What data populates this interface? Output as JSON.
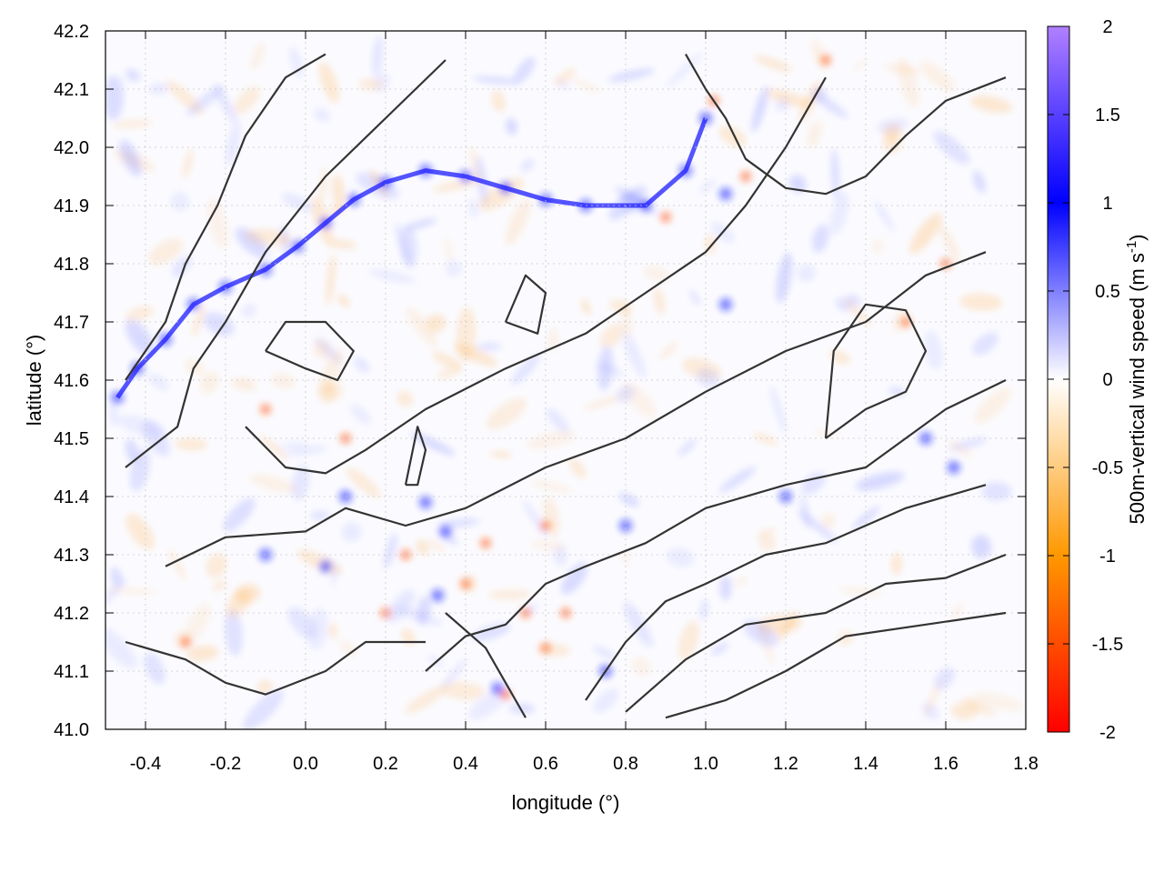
{
  "chart_data": {
    "type": "heatmap",
    "title": "",
    "xlabel": "longitude (°)",
    "ylabel": "latitude (°)",
    "xlim": [
      -0.5,
      1.8
    ],
    "ylim": [
      41.0,
      42.2
    ],
    "x_ticks": [
      -0.4,
      -0.2,
      0.0,
      0.2,
      0.4,
      0.6,
      0.8,
      1.0,
      1.2,
      1.4,
      1.6,
      1.8
    ],
    "x_tick_labels": [
      "-0.4",
      "-0.2",
      "0.0",
      "0.2",
      "0.4",
      "0.6",
      "0.8",
      "1.0",
      "1.2",
      "1.4",
      "1.6",
      "1.8"
    ],
    "y_ticks": [
      41.0,
      41.1,
      41.2,
      41.3,
      41.4,
      41.5,
      41.6,
      41.7,
      41.8,
      41.9,
      42.0,
      42.1,
      42.2
    ],
    "y_tick_labels": [
      "41.0",
      "41.1",
      "41.2",
      "41.3",
      "41.4",
      "41.5",
      "41.6",
      "41.7",
      "41.8",
      "41.9",
      "42.0",
      "42.1",
      "42.2"
    ],
    "grid": true,
    "colorbar": {
      "label": "500m-vertical wind speed",
      "unit_base": "(m s",
      "unit_exp": "-1",
      "unit_close": ")",
      "range": [
        -2,
        2
      ],
      "ticks": [
        2,
        1.5,
        1,
        0.5,
        0,
        -0.5,
        -1,
        -1.5,
        -2
      ],
      "tick_labels": [
        "2",
        "1.5",
        "1",
        "0.5",
        "0",
        "-0.5",
        "-1",
        "-1.5",
        "-2"
      ],
      "colors": [
        "#ff0000",
        "#ff9800",
        "#ffffff",
        "#0000ff",
        "#b080ff"
      ]
    },
    "colors": {
      "contour": "#333333",
      "frame": "#000000",
      "grid": "#c8c8c8"
    },
    "updrafts": [
      [
        -0.47,
        41.57
      ],
      [
        -0.42,
        41.62
      ],
      [
        -0.35,
        41.67
      ],
      [
        -0.28,
        41.73
      ],
      [
        -0.2,
        41.76
      ],
      [
        -0.1,
        41.79
      ],
      [
        -0.02,
        41.83
      ],
      [
        0.05,
        41.87
      ],
      [
        0.12,
        41.91
      ],
      [
        0.2,
        41.94
      ],
      [
        0.3,
        41.96
      ],
      [
        0.4,
        41.95
      ],
      [
        0.5,
        41.93
      ],
      [
        0.6,
        41.91
      ],
      [
        0.7,
        41.9
      ],
      [
        0.85,
        41.9
      ],
      [
        0.95,
        41.96
      ],
      [
        1.0,
        42.05
      ],
      [
        1.05,
        41.92
      ],
      [
        0.1,
        41.4
      ],
      [
        0.3,
        41.39
      ],
      [
        0.35,
        41.34
      ],
      [
        0.33,
        41.23
      ],
      [
        0.48,
        41.07
      ],
      [
        -0.1,
        41.3
      ],
      [
        0.05,
        41.28
      ],
      [
        1.2,
        41.4
      ],
      [
        1.55,
        41.5
      ],
      [
        1.62,
        41.45
      ],
      [
        1.05,
        41.73
      ],
      [
        0.8,
        41.35
      ],
      [
        0.75,
        41.1
      ]
    ],
    "downdrafts": [
      [
        0.6,
        41.14
      ],
      [
        0.65,
        41.2
      ],
      [
        0.5,
        41.06
      ],
      [
        1.02,
        42.08
      ],
      [
        1.3,
        42.15
      ],
      [
        0.25,
        41.3
      ],
      [
        0.45,
        41.32
      ],
      [
        0.6,
        41.35
      ],
      [
        0.2,
        41.2
      ],
      [
        -0.3,
        41.15
      ],
      [
        -0.1,
        41.55
      ],
      [
        0.1,
        41.5
      ],
      [
        0.4,
        41.25
      ],
      [
        0.55,
        41.2
      ],
      [
        1.1,
        41.95
      ],
      [
        0.9,
        41.88
      ],
      [
        1.5,
        41.7
      ],
      [
        1.6,
        41.8
      ]
    ],
    "contours": [
      [
        [
          -0.45,
          41.6
        ],
        [
          -0.35,
          41.7
        ],
        [
          -0.3,
          41.8
        ],
        [
          -0.22,
          41.9
        ],
        [
          -0.15,
          42.02
        ],
        [
          -0.05,
          42.12
        ],
        [
          0.05,
          42.16
        ]
      ],
      [
        [
          -0.45,
          41.45
        ],
        [
          -0.32,
          41.52
        ],
        [
          -0.28,
          41.62
        ],
        [
          -0.2,
          41.7
        ],
        [
          -0.1,
          41.82
        ],
        [
          0.05,
          41.95
        ],
        [
          0.2,
          42.05
        ],
        [
          0.35,
          42.15
        ]
      ],
      [
        [
          -0.35,
          41.28
        ],
        [
          -0.2,
          41.33
        ],
        [
          0.0,
          41.34
        ],
        [
          0.1,
          41.38
        ],
        [
          0.25,
          41.35
        ],
        [
          0.4,
          41.38
        ],
        [
          0.6,
          41.45
        ],
        [
          0.8,
          41.5
        ],
        [
          1.0,
          41.58
        ],
        [
          1.2,
          41.65
        ],
        [
          1.4,
          41.7
        ],
        [
          1.55,
          41.78
        ],
        [
          1.7,
          41.82
        ]
      ],
      [
        [
          -0.15,
          41.52
        ],
        [
          -0.05,
          41.45
        ],
        [
          0.05,
          41.44
        ],
        [
          0.15,
          41.48
        ],
        [
          0.3,
          41.55
        ],
        [
          0.5,
          41.62
        ],
        [
          0.7,
          41.68
        ],
        [
          0.85,
          41.75
        ],
        [
          1.0,
          41.82
        ],
        [
          1.1,
          41.9
        ],
        [
          1.2,
          42.0
        ],
        [
          1.3,
          42.12
        ]
      ],
      [
        [
          0.3,
          41.1
        ],
        [
          0.4,
          41.16
        ],
        [
          0.5,
          41.18
        ],
        [
          0.6,
          41.25
        ],
        [
          0.7,
          41.28
        ],
        [
          0.85,
          41.32
        ],
        [
          1.0,
          41.38
        ],
        [
          1.2,
          41.42
        ],
        [
          1.4,
          41.45
        ],
        [
          1.6,
          41.55
        ],
        [
          1.75,
          41.6
        ]
      ],
      [
        [
          0.7,
          41.05
        ],
        [
          0.8,
          41.15
        ],
        [
          0.9,
          41.22
        ],
        [
          1.0,
          41.25
        ],
        [
          1.15,
          41.3
        ],
        [
          1.3,
          41.32
        ],
        [
          1.5,
          41.38
        ],
        [
          1.7,
          41.42
        ]
      ],
      [
        [
          0.8,
          41.03
        ],
        [
          0.95,
          41.12
        ],
        [
          1.1,
          41.18
        ],
        [
          1.3,
          41.2
        ],
        [
          1.45,
          41.25
        ],
        [
          1.6,
          41.26
        ],
        [
          1.75,
          41.3
        ]
      ],
      [
        [
          0.9,
          41.02
        ],
        [
          1.05,
          41.05
        ],
        [
          1.2,
          41.1
        ],
        [
          1.35,
          41.16
        ],
        [
          1.55,
          41.18
        ],
        [
          1.75,
          41.2
        ]
      ],
      [
        [
          0.35,
          41.2
        ],
        [
          0.45,
          41.14
        ],
        [
          0.5,
          41.08
        ],
        [
          0.55,
          41.02
        ]
      ],
      [
        [
          -0.45,
          41.15
        ],
        [
          -0.3,
          41.12
        ],
        [
          -0.2,
          41.08
        ],
        [
          -0.1,
          41.06
        ],
        [
          0.05,
          41.1
        ],
        [
          0.15,
          41.15
        ],
        [
          0.3,
          41.15
        ]
      ],
      [
        [
          0.95,
          42.16
        ],
        [
          1.0,
          42.1
        ],
        [
          1.05,
          42.05
        ],
        [
          1.1,
          41.98
        ],
        [
          1.2,
          41.93
        ],
        [
          1.3,
          41.92
        ],
        [
          1.4,
          41.95
        ],
        [
          1.5,
          42.02
        ],
        [
          1.6,
          42.08
        ],
        [
          1.75,
          42.12
        ]
      ],
      [
        [
          1.3,
          41.5
        ],
        [
          1.4,
          41.55
        ],
        [
          1.5,
          41.58
        ],
        [
          1.55,
          41.65
        ],
        [
          1.5,
          41.72
        ],
        [
          1.4,
          41.73
        ],
        [
          1.32,
          41.65
        ],
        [
          1.3,
          41.5
        ]
      ],
      [
        [
          0.25,
          41.42
        ],
        [
          0.28,
          41.52
        ],
        [
          0.3,
          41.48
        ],
        [
          0.28,
          41.42
        ],
        [
          0.25,
          41.42
        ]
      ],
      [
        [
          0.5,
          41.7
        ],
        [
          0.55,
          41.78
        ],
        [
          0.6,
          41.75
        ],
        [
          0.58,
          41.68
        ],
        [
          0.5,
          41.7
        ]
      ],
      [
        [
          -0.1,
          41.65
        ],
        [
          0.0,
          41.62
        ],
        [
          0.08,
          41.6
        ],
        [
          0.12,
          41.65
        ],
        [
          0.05,
          41.7
        ],
        [
          -0.05,
          41.7
        ],
        [
          -0.1,
          41.65
        ]
      ]
    ]
  }
}
